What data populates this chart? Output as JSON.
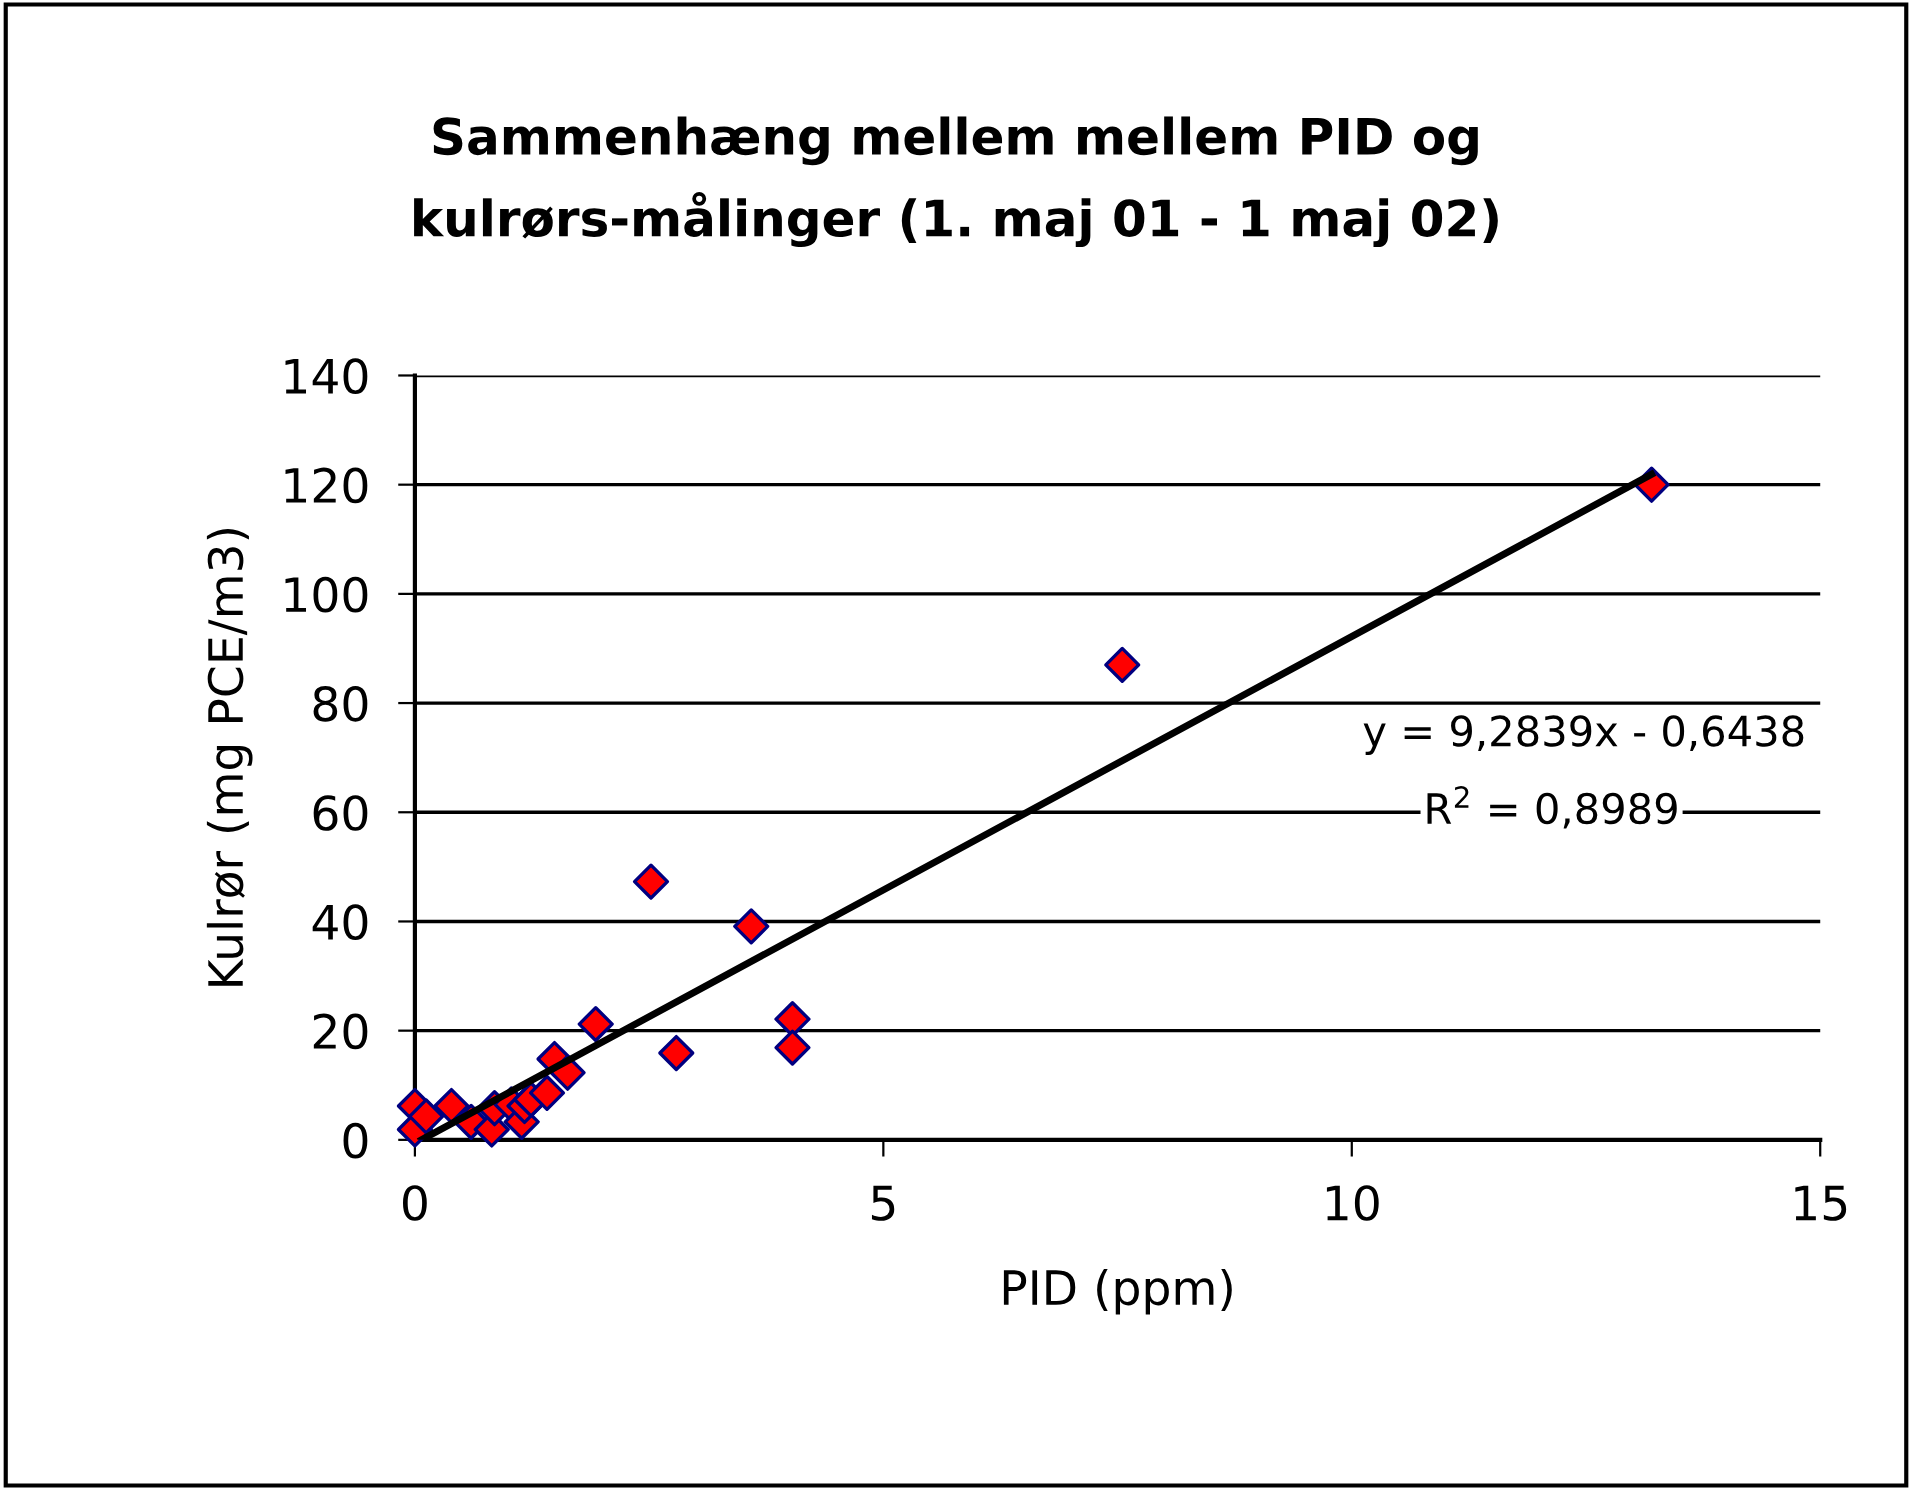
{
  "chart_data": {
    "type": "scatter",
    "title": "Sammenhæng mellem mellem PID og\nkulrørs-målinger (1. maj 01 - 1 maj 02)",
    "xlabel": "PID (ppm)",
    "ylabel": "Kulrør (mg PCE/m3)",
    "xlim": [
      0,
      15
    ],
    "xticks": [
      0,
      5,
      10,
      15
    ],
    "ylim": [
      0,
      140
    ],
    "yticks": [
      0,
      20,
      40,
      60,
      80,
      100,
      120,
      140
    ],
    "grid": "y",
    "legend": false,
    "marker": "diamond",
    "series": [
      {
        "color": "#ff0000",
        "x": [
          0,
          0,
          0.12,
          0.39,
          0.6,
          0.82,
          0.85,
          1.03,
          1.14,
          1.17,
          1.24,
          1.41,
          1.49,
          1.63,
          1.93,
          2.52,
          2.79,
          3.59,
          4.03,
          4.03,
          7.55,
          13.2
        ],
        "values": [
          6.2,
          1.9,
          4.3,
          6.2,
          3.3,
          1.9,
          5.8,
          6.5,
          3.3,
          6.2,
          7.4,
          8.6,
          14.8,
          12.3,
          21.2,
          47.3,
          15.9,
          39.1,
          22.1,
          16.9,
          87,
          120
        ]
      },
      {
        "type": "line",
        "color": "#000000",
        "marker": "none",
        "line_style": "solid",
        "x": [
          0.07,
          13.2
        ],
        "values": [
          0,
          121.9
        ]
      }
    ],
    "annotations": [
      "y = 9,2839x - 0,6438",
      "R$^{2}$ = 0,8989"
    ]
  }
}
